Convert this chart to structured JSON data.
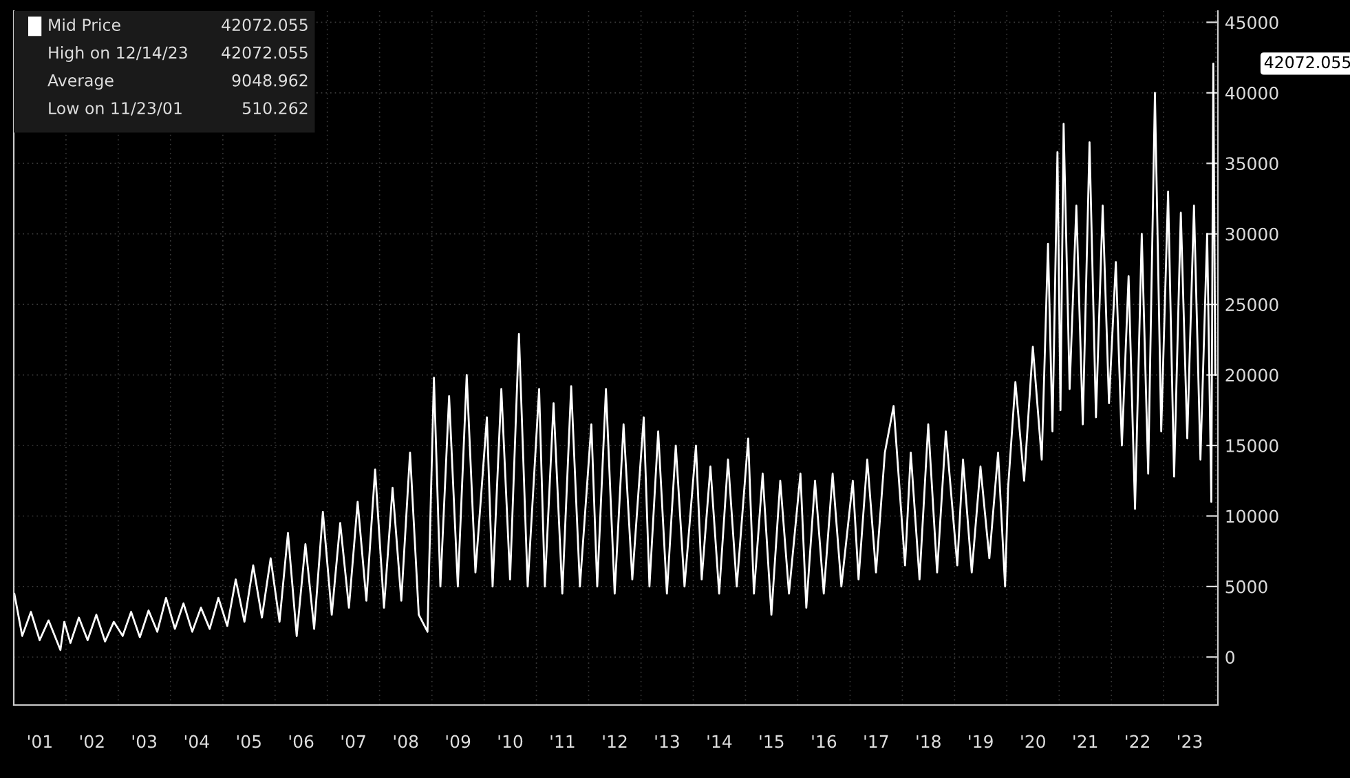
{
  "chart_data": {
    "type": "line",
    "series": [
      {
        "name": "Mid Price",
        "color": "#ffffff",
        "x": [
          "2001-01-05",
          "2001-03-01",
          "2001-05-01",
          "2001-07-01",
          "2001-09-01",
          "2001-11-23",
          "2001-12-20",
          "2002-02-01",
          "2002-04-01",
          "2002-06-01",
          "2002-08-01",
          "2002-10-01",
          "2002-12-01",
          "2003-02-01",
          "2003-04-01",
          "2003-06-01",
          "2003-08-01",
          "2003-10-01",
          "2003-12-01",
          "2004-02-01",
          "2004-04-01",
          "2004-06-01",
          "2004-08-01",
          "2004-10-01",
          "2004-12-01",
          "2005-02-01",
          "2005-04-01",
          "2005-06-01",
          "2005-08-01",
          "2005-10-01",
          "2005-12-01",
          "2006-02-01",
          "2006-04-01",
          "2006-06-01",
          "2006-08-01",
          "2006-10-01",
          "2006-12-01",
          "2007-02-01",
          "2007-04-01",
          "2007-06-01",
          "2007-08-01",
          "2007-10-01",
          "2007-12-01",
          "2008-02-01",
          "2008-04-01",
          "2008-06-01",
          "2008-08-01",
          "2008-10-01",
          "2008-12-01",
          "2009-01-15",
          "2009-03-01",
          "2009-05-01",
          "2009-07-01",
          "2009-09-01",
          "2009-11-01",
          "2010-01-20",
          "2010-03-01",
          "2010-05-01",
          "2010-07-01",
          "2010-09-01",
          "2010-11-01",
          "2011-01-20",
          "2011-03-01",
          "2011-05-01",
          "2011-07-01",
          "2011-09-01",
          "2011-11-01",
          "2012-01-20",
          "2012-03-01",
          "2012-05-01",
          "2012-07-01",
          "2012-09-01",
          "2012-11-01",
          "2013-01-20",
          "2013-03-01",
          "2013-05-01",
          "2013-07-01",
          "2013-09-01",
          "2013-11-01",
          "2014-01-20",
          "2014-03-01",
          "2014-05-01",
          "2014-07-01",
          "2014-09-01",
          "2014-11-01",
          "2015-01-20",
          "2015-03-01",
          "2015-05-01",
          "2015-07-01",
          "2015-09-01",
          "2015-11-01",
          "2016-01-20",
          "2016-03-01",
          "2016-05-01",
          "2016-07-01",
          "2016-09-01",
          "2016-11-01",
          "2017-01-20",
          "2017-03-01",
          "2017-05-01",
          "2017-07-01",
          "2017-09-01",
          "2017-11-01",
          "2018-01-20",
          "2018-03-01",
          "2018-05-01",
          "2018-07-01",
          "2018-09-01",
          "2018-11-01",
          "2019-01-20",
          "2019-03-01",
          "2019-05-01",
          "2019-07-01",
          "2019-09-01",
          "2019-11-01",
          "2019-12-20",
          "2020-01-10",
          "2020-03-01",
          "2020-05-01",
          "2020-07-01",
          "2020-09-01",
          "2020-10-15",
          "2020-11-15",
          "2020-12-20",
          "2021-01-10",
          "2021-02-01",
          "2021-03-15",
          "2021-05-01",
          "2021-06-15",
          "2021-08-01",
          "2021-09-15",
          "2021-11-01",
          "2021-12-15",
          "2022-02-01",
          "2022-03-15",
          "2022-05-01",
          "2022-06-15",
          "2022-08-01",
          "2022-09-15",
          "2022-11-01",
          "2022-12-15",
          "2023-02-01",
          "2023-03-15",
          "2023-05-01",
          "2023-06-15",
          "2023-08-01",
          "2023-09-15",
          "2023-11-01",
          "2023-11-30",
          "2023-12-14",
          "2023-12-28"
        ],
        "values": [
          4500,
          1500,
          3200,
          1200,
          2600,
          500,
          2500,
          1000,
          2800,
          1200,
          3000,
          1100,
          2500,
          1500,
          3200,
          1400,
          3300,
          1800,
          4200,
          2000,
          3800,
          1800,
          3500,
          2000,
          4200,
          2200,
          5500,
          2500,
          6500,
          2800,
          7000,
          2500,
          8800,
          1500,
          8000,
          2000,
          10300,
          3000,
          9500,
          3500,
          11000,
          4000,
          13300,
          3500,
          12000,
          4000,
          14500,
          3000,
          1800,
          19800,
          5000,
          18500,
          5000,
          20000,
          6000,
          17000,
          5000,
          19000,
          5500,
          22900,
          5000,
          19000,
          5000,
          18000,
          4500,
          19200,
          5000,
          16500,
          5000,
          19000,
          4500,
          16500,
          5500,
          17000,
          5000,
          16000,
          4500,
          15000,
          5000,
          15000,
          5500,
          13500,
          4500,
          14000,
          5000,
          15500,
          4500,
          13000,
          3000,
          12500,
          4500,
          13000,
          3500,
          12500,
          4500,
          13000,
          5000,
          12500,
          5500,
          14000,
          6000,
          14500,
          17800,
          6500,
          14500,
          5500,
          16500,
          6000,
          16000,
          6500,
          14000,
          6000,
          13500,
          7000,
          14500,
          5000,
          12000,
          19500,
          12500,
          22000,
          14000,
          29300,
          16000,
          35800,
          17500,
          37800,
          19000,
          32000,
          16500,
          36500,
          17000,
          32000,
          18000,
          28000,
          15000,
          27000,
          10500,
          30000,
          13000,
          40000,
          16000,
          33000,
          12800,
          31500,
          15500,
          32000,
          14000,
          30000,
          11000,
          42072.055,
          20000
        ]
      }
    ],
    "xlim": [
      "2001-01-01",
      "2024-01-15"
    ],
    "xticks": [
      {
        "value": "2001-07-02",
        "label": "'01"
      },
      {
        "value": "2002-01-01",
        "label": null
      },
      {
        "value": "2002-07-02",
        "label": "'02"
      },
      {
        "value": "2003-01-01",
        "label": null
      },
      {
        "value": "2003-07-02",
        "label": "'03"
      },
      {
        "value": "2004-01-01",
        "label": null
      },
      {
        "value": "2004-07-02",
        "label": "'04"
      },
      {
        "value": "2005-01-01",
        "label": null
      },
      {
        "value": "2005-07-02",
        "label": "'05"
      },
      {
        "value": "2006-01-01",
        "label": null
      },
      {
        "value": "2006-07-02",
        "label": "'06"
      },
      {
        "value": "2007-01-01",
        "label": null
      },
      {
        "value": "2007-07-02",
        "label": "'07"
      },
      {
        "value": "2008-01-01",
        "label": null
      },
      {
        "value": "2008-07-02",
        "label": "'08"
      },
      {
        "value": "2009-01-01",
        "label": null
      },
      {
        "value": "2009-07-02",
        "label": "'09"
      },
      {
        "value": "2010-01-01",
        "label": null
      },
      {
        "value": "2010-07-02",
        "label": "'10"
      },
      {
        "value": "2011-01-01",
        "label": null
      },
      {
        "value": "2011-07-02",
        "label": "'11"
      },
      {
        "value": "2012-01-01",
        "label": null
      },
      {
        "value": "2012-07-02",
        "label": "'12"
      },
      {
        "value": "2013-01-01",
        "label": null
      },
      {
        "value": "2013-07-02",
        "label": "'13"
      },
      {
        "value": "2014-01-01",
        "label": null
      },
      {
        "value": "2014-07-02",
        "label": "'14"
      },
      {
        "value": "2015-01-01",
        "label": null
      },
      {
        "value": "2015-07-02",
        "label": "'15"
      },
      {
        "value": "2016-01-01",
        "label": null
      },
      {
        "value": "2016-07-02",
        "label": "'16"
      },
      {
        "value": "2017-01-01",
        "label": null
      },
      {
        "value": "2017-07-02",
        "label": "'17"
      },
      {
        "value": "2018-01-01",
        "label": null
      },
      {
        "value": "2018-07-02",
        "label": "'18"
      },
      {
        "value": "2019-01-01",
        "label": null
      },
      {
        "value": "2019-07-02",
        "label": "'19"
      },
      {
        "value": "2020-01-01",
        "label": null
      },
      {
        "value": "2020-07-02",
        "label": "'20"
      },
      {
        "value": "2021-01-01",
        "label": null
      },
      {
        "value": "2021-07-02",
        "label": "'21"
      },
      {
        "value": "2022-01-01",
        "label": null
      },
      {
        "value": "2022-07-02",
        "label": "'22"
      },
      {
        "value": "2023-01-01",
        "label": null
      },
      {
        "value": "2023-07-02",
        "label": "'23"
      },
      {
        "value": "2024-01-01",
        "label": null
      }
    ],
    "ylim": [
      -3400,
      45800
    ],
    "yticks": [
      0,
      5000,
      10000,
      15000,
      20000,
      25000,
      30000,
      35000,
      40000,
      45000
    ],
    "grid": true,
    "legend": "top left",
    "annotations": [
      "42072.055",
      "High on 12/14/23",
      "42072.055",
      "Average",
      "9048.962",
      "Low on 11/23/01",
      "510.262",
      "42072.055"
    ]
  }
}
